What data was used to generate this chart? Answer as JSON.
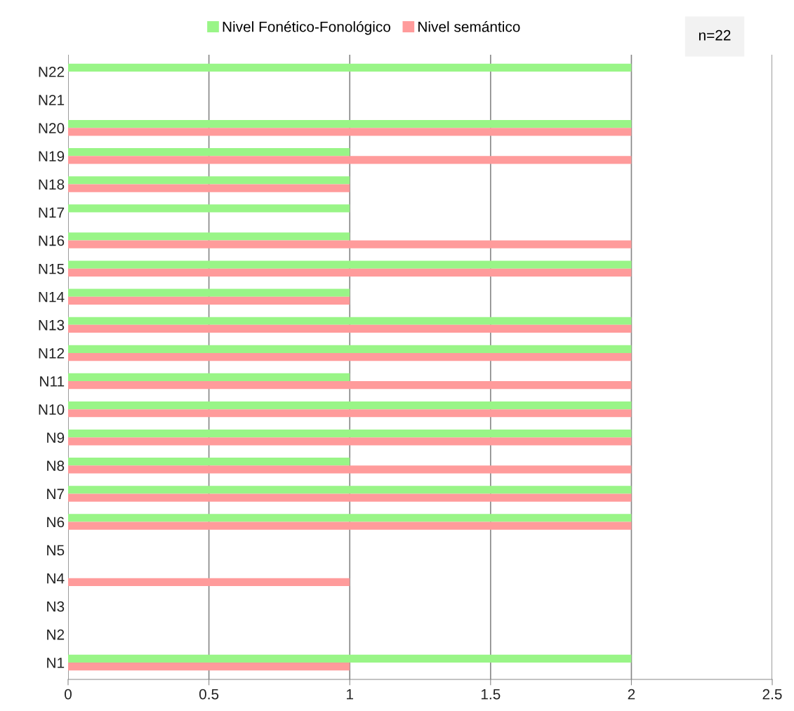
{
  "chart_data": {
    "type": "bar",
    "orientation": "horizontal",
    "categories": [
      "N22",
      "N21",
      "N20",
      "N19",
      "N18",
      "N17",
      "N16",
      "N15",
      "N14",
      "N13",
      "N12",
      "N11",
      "N10",
      "N9",
      "N8",
      "N7",
      "N6",
      "N5",
      "N4",
      "N3",
      "N2",
      "N1"
    ],
    "series": [
      {
        "name": "Nivel Fonético-Fonológico",
        "color": "#99f587",
        "values": [
          2,
          0,
          2,
          1,
          1,
          1,
          1,
          2,
          1,
          2,
          2,
          1,
          2,
          2,
          1,
          2,
          2,
          0,
          0,
          0,
          0,
          2
        ]
      },
      {
        "name": "Nivel semántico",
        "color": "#ff9b9b",
        "values": [
          0,
          0,
          2,
          2,
          1,
          0,
          2,
          2,
          1,
          2,
          2,
          2,
          2,
          2,
          2,
          2,
          2,
          0,
          1,
          0,
          0,
          1
        ]
      }
    ],
    "xlim": [
      0,
      2.5
    ],
    "xticks": [
      0,
      0.5,
      1,
      1.5,
      2,
      2.5
    ],
    "grid": "x",
    "legend": "top",
    "annotations": [
      "n=22"
    ]
  }
}
